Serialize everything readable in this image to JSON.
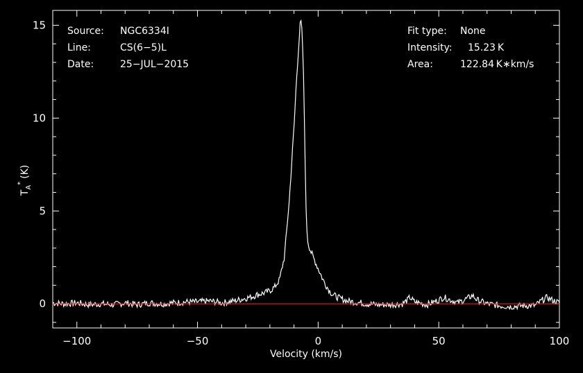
{
  "info_left": [
    {
      "key": "Source:",
      "value": "NGC6334I"
    },
    {
      "key": "Line:",
      "value": "CS(6−5)L"
    },
    {
      "key": "Date:",
      "value": "25−JUL−2015"
    }
  ],
  "info_right": [
    {
      "key": "Fit type:",
      "value": "None"
    },
    {
      "key": "Intensity:",
      "value": "15.23 K"
    },
    {
      "key": "Area:",
      "value": "122.84 K∗km/s"
    }
  ],
  "chart_data": {
    "type": "line",
    "xlabel": "Velocity (km/s)",
    "ylabel": "T",
    "ylabel_sub": "A",
    "ylabel_sup": "*",
    "ylabel_unit": "(K)",
    "xlim": [
      -110,
      100
    ],
    "ylim": [
      -1.3,
      15.8
    ],
    "xticks": [
      -100,
      -50,
      0,
      50,
      100
    ],
    "xtick_labels": [
      "−100",
      "−50",
      "0",
      "50",
      "100"
    ],
    "yticks": [
      0,
      5,
      10,
      15
    ],
    "ytick_labels": [
      "0",
      "5",
      "10",
      "15"
    ],
    "grid": false,
    "colors": {
      "background": "#000000",
      "spectrum": "#ffffff",
      "baseline": "#e02020",
      "frame": "#ffffff"
    },
    "baseline": 0,
    "series": [
      {
        "x": [
          -110,
          -105,
          -100,
          -95,
          -90,
          -85,
          -80,
          -75,
          -70,
          -65,
          -60,
          -55,
          -50,
          -45,
          -40,
          -35,
          -30,
          -27,
          -25,
          -22,
          -20,
          -18,
          -16,
          -14,
          -12,
          -11,
          -10,
          -9,
          -8,
          -7.5,
          -7,
          -6.5,
          -6,
          -5.5,
          -5,
          -4.5,
          -4,
          -3,
          -2,
          -1,
          0,
          1,
          2,
          3,
          4,
          5,
          6,
          8,
          10,
          12,
          15,
          18,
          20,
          25,
          30,
          35,
          37,
          38,
          40,
          45,
          50,
          52,
          54,
          58,
          62,
          64,
          66,
          70,
          75,
          80,
          85,
          90,
          93,
          95,
          97,
          100
        ],
        "y": [
          0.05,
          0.0,
          0.05,
          -0.05,
          0.0,
          -0.05,
          0.05,
          -0.05,
          0.05,
          0.0,
          0.05,
          0.1,
          0.1,
          0.15,
          0.05,
          0.15,
          0.3,
          0.4,
          0.5,
          0.6,
          0.7,
          0.9,
          1.3,
          2.5,
          5.5,
          7.5,
          9.5,
          12.0,
          14.0,
          15.0,
          15.2,
          14.2,
          12.0,
          8.5,
          5.0,
          3.6,
          3.2,
          2.8,
          2.5,
          2.2,
          1.9,
          1.6,
          1.3,
          1.05,
          0.85,
          0.65,
          0.5,
          0.35,
          0.25,
          0.15,
          0.1,
          0.05,
          0.0,
          -0.05,
          -0.05,
          0.0,
          0.2,
          0.35,
          0.1,
          -0.05,
          0.2,
          0.35,
          0.25,
          0.05,
          0.3,
          0.45,
          0.2,
          0.0,
          -0.1,
          -0.15,
          -0.1,
          -0.1,
          0.2,
          0.35,
          0.2,
          0.05
        ]
      }
    ]
  }
}
